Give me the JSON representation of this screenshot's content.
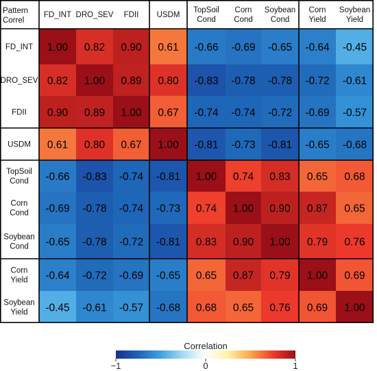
{
  "chart_data": {
    "type": "heatmap",
    "corner_label": [
      "Pattern",
      "Correl"
    ],
    "columns": [
      [
        "FD_INT"
      ],
      [
        "DRO_SEV"
      ],
      [
        "FDII"
      ],
      [
        "USDM"
      ],
      [
        "TopSoil",
        "Cond"
      ],
      [
        "Corn",
        "Cond"
      ],
      [
        "Soybean",
        "Cond"
      ],
      [
        "Corn",
        "Yield"
      ],
      [
        "Soybean",
        "Yield"
      ]
    ],
    "rows": [
      [
        "FD_INT"
      ],
      [
        "DRO_SEV"
      ],
      [
        "FDII"
      ],
      [
        "USDM"
      ],
      [
        "TopSoil",
        "Cond"
      ],
      [
        "Corn",
        "Cond"
      ],
      [
        "Soybean",
        "Cond"
      ],
      [
        "Corn",
        "Yield"
      ],
      [
        "Soybean",
        "Yield"
      ]
    ],
    "values": [
      [
        "1.00",
        "0.82",
        "0.90",
        "0.61",
        "-0.66",
        "-0.69",
        "-0.65",
        "-0.64",
        "-0.45"
      ],
      [
        "0.82",
        "1.00",
        "0.89",
        "0.80",
        "-0.83",
        "-0.78",
        "-0.78",
        "-0.72",
        "-0.61"
      ],
      [
        "0.90",
        "0.89",
        "1.00",
        "0.67",
        "-0.74",
        "-0.74",
        "-0.72",
        "-0.69",
        "-0.57"
      ],
      [
        "0.61",
        "0.80",
        "0.67",
        "1.00",
        "-0.81",
        "-0.73",
        "-0.81",
        "-0.65",
        "-0.68"
      ],
      [
        "-0.66",
        "-0.83",
        "-0.74",
        "-0.81",
        "1.00",
        "0.74",
        "0.83",
        "0.65",
        "0.68"
      ],
      [
        "-0.69",
        "-0.78",
        "-0.74",
        "-0.73",
        "0.74",
        "1.00",
        "0.90",
        "0.87",
        "0.65"
      ],
      [
        "-0.65",
        "-0.78",
        "-0.72",
        "-0.81",
        "0.83",
        "0.90",
        "1.00",
        "0.79",
        "0.76"
      ],
      [
        "-0.64",
        "-0.72",
        "-0.69",
        "-0.65",
        "0.65",
        "0.87",
        "0.79",
        "1.00",
        "0.69"
      ],
      [
        "-0.45",
        "-0.61",
        "-0.57",
        "-0.68",
        "0.68",
        "0.65",
        "0.76",
        "0.69",
        "1.00"
      ]
    ],
    "group_boundaries": [
      3,
      4,
      7
    ],
    "colorbar": {
      "title": "Correlation",
      "range": [
        -1,
        1
      ],
      "tick_labels": [
        "−1",
        "0",
        "1"
      ],
      "tick_values": [
        -1,
        0,
        1
      ],
      "stops": [
        {
          "value": -1.0,
          "color": "#1c2f8f"
        },
        {
          "value": -0.75,
          "color": "#1d64b6"
        },
        {
          "value": -0.5,
          "color": "#3ea2e2"
        },
        {
          "value": -0.25,
          "color": "#a8dcf2"
        },
        {
          "value": 0.0,
          "color": "#ffffff"
        },
        {
          "value": 0.25,
          "color": "#fff1a8"
        },
        {
          "value": 0.5,
          "color": "#f9a74a"
        },
        {
          "value": 0.75,
          "color": "#ef3b2c"
        },
        {
          "value": 1.0,
          "color": "#9a0f18"
        }
      ]
    }
  }
}
